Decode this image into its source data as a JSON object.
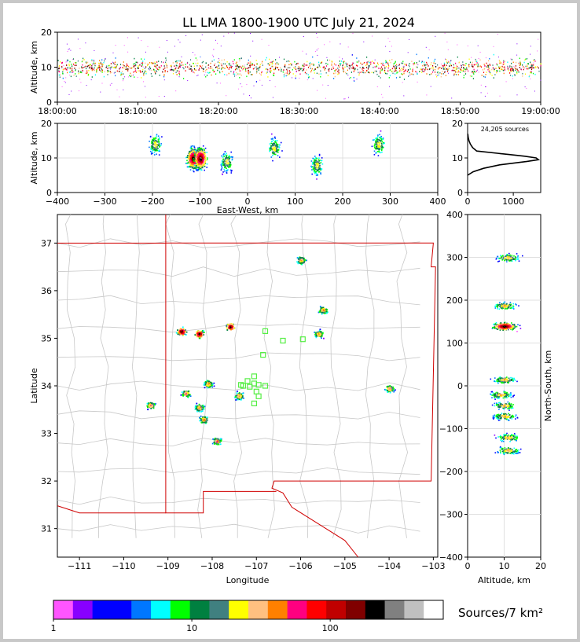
{
  "title": "LL LMA 1800-1900 UTC July 21, 2024",
  "source_count_label": "24,205 sources",
  "colorbar": {
    "label": "Sources/7 km²",
    "ticks": [
      "1",
      "10",
      "100"
    ],
    "colors": [
      "#ff55ff",
      "#8800ff",
      "#0000ff",
      "#0000ff",
      "#0077ff",
      "#00ffff",
      "#00ff00",
      "#008040",
      "#408080",
      "#ffff00",
      "#ffc080",
      "#ff8000",
      "#ff0080",
      "#ff0000",
      "#c00000",
      "#800000",
      "#000000",
      "#808080",
      "#c0c0c0",
      "#ffffff"
    ]
  },
  "chart_data": [
    {
      "id": "time-height",
      "type": "scatter",
      "xlabel": "",
      "ylabel": "Altitude, km",
      "x_ticks": [
        "18:00:00",
        "18:10:00",
        "18:20:00",
        "18:30:00",
        "18:40:00",
        "18:50:00",
        "19:00:00"
      ],
      "xlim": [
        "18:00:00",
        "19:00:00"
      ],
      "y_ticks": [
        0,
        10,
        20
      ],
      "ylim": [
        0,
        20
      ],
      "core_altitude_km": [
        7,
        13
      ]
    },
    {
      "id": "ew-altitude",
      "type": "scatter",
      "xlabel": "East-West, km",
      "ylabel": "Altitude, km",
      "x_ticks": [
        -400,
        -300,
        -200,
        -100,
        0,
        100,
        200,
        300,
        400
      ],
      "xlim": [
        -400,
        400
      ],
      "y_ticks": [
        0,
        10,
        20
      ],
      "ylim": [
        0,
        20
      ],
      "clusters": [
        {
          "x": -195,
          "alt": 14
        },
        {
          "x": -115,
          "alt": 10
        },
        {
          "x": -100,
          "alt": 10
        },
        {
          "x": -45,
          "alt": 9
        },
        {
          "x": 55,
          "alt": 13
        },
        {
          "x": 145,
          "alt": 8
        },
        {
          "x": 275,
          "alt": 14
        }
      ]
    },
    {
      "id": "altitude-histogram",
      "type": "line",
      "xlabel": "",
      "ylabel": "",
      "x_ticks": [
        0,
        1000
      ],
      "xlim": [
        0,
        1600
      ],
      "y_ticks": [
        0,
        10,
        20
      ],
      "ylim": [
        0,
        20
      ],
      "series": [
        {
          "alt": [
            5,
            6,
            7,
            8,
            9,
            9.5,
            10,
            10.5,
            11,
            12,
            13,
            14,
            15,
            16,
            17
          ],
          "count": [
            0,
            120,
            350,
            700,
            1300,
            1550,
            1500,
            1250,
            900,
            200,
            110,
            60,
            30,
            12,
            4
          ]
        }
      ]
    },
    {
      "id": "plan-view",
      "type": "scatter",
      "xlabel": "Longitude",
      "ylabel": "Latitude",
      "x_ticks": [
        -111,
        -110,
        -109,
        -108,
        -107,
        -106,
        -105,
        -104,
        -103
      ],
      "xlim": [
        -111.5,
        -102.9
      ],
      "y_ticks": [
        31,
        32,
        33,
        34,
        35,
        36,
        37
      ],
      "ylim": [
        30.4,
        37.6
      ],
      "source_clusters": [
        {
          "lon": -108.7,
          "lat": 35.15
        },
        {
          "lon": -108.3,
          "lat": 35.1
        },
        {
          "lon": -107.6,
          "lat": 35.25
        },
        {
          "lon": -108.1,
          "lat": 34.05
        },
        {
          "lon": -108.3,
          "lat": 33.55
        },
        {
          "lon": -108.2,
          "lat": 33.3
        },
        {
          "lon": -107.9,
          "lat": 32.85
        },
        {
          "lon": -108.6,
          "lat": 33.85
        },
        {
          "lon": -107.4,
          "lat": 33.8
        },
        {
          "lon": -109.4,
          "lat": 33.6
        },
        {
          "lon": -105.6,
          "lat": 35.1
        },
        {
          "lon": -105.5,
          "lat": 35.6
        },
        {
          "lon": -104.0,
          "lat": 33.95
        },
        {
          "lon": -106.0,
          "lat": 36.65
        }
      ],
      "stations": [
        {
          "lon": -106.8,
          "lat": 35.15
        },
        {
          "lon": -106.4,
          "lat": 34.95
        },
        {
          "lon": -105.95,
          "lat": 34.98
        },
        {
          "lon": -106.85,
          "lat": 34.65
        },
        {
          "lon": -107.05,
          "lat": 34.2
        },
        {
          "lon": -107.2,
          "lat": 34.1
        },
        {
          "lon": -107.05,
          "lat": 34.05
        },
        {
          "lon": -107.3,
          "lat": 34.0
        },
        {
          "lon": -107.15,
          "lat": 33.98
        },
        {
          "lon": -106.8,
          "lat": 34.0
        },
        {
          "lon": -107.0,
          "lat": 33.88
        },
        {
          "lon": -106.95,
          "lat": 33.78
        },
        {
          "lon": -107.05,
          "lat": 33.63
        },
        {
          "lon": -107.35,
          "lat": 34.02
        },
        {
          "lon": -106.95,
          "lat": 34.02
        }
      ]
    },
    {
      "id": "altitude-ns",
      "type": "scatter",
      "xlabel": "Altitude, km",
      "ylabel": "North-South, km",
      "x_ticks": [
        0,
        10,
        20
      ],
      "xlim": [
        0,
        20
      ],
      "y_ticks": [
        400,
        300,
        200,
        100,
        0,
        -100,
        -200,
        -300,
        -400
      ],
      "ylim": [
        -400,
        400
      ],
      "clusters": [
        {
          "alt": 10,
          "y": 188
        },
        {
          "alt": 10,
          "y": 140
        },
        {
          "alt": 11,
          "y": 300
        },
        {
          "alt": 10,
          "y": 15
        },
        {
          "alt": 9,
          "y": -20
        },
        {
          "alt": 10,
          "y": -45
        },
        {
          "alt": 10,
          "y": -70
        },
        {
          "alt": 11,
          "y": -120
        },
        {
          "alt": 11,
          "y": -150
        }
      ]
    }
  ]
}
